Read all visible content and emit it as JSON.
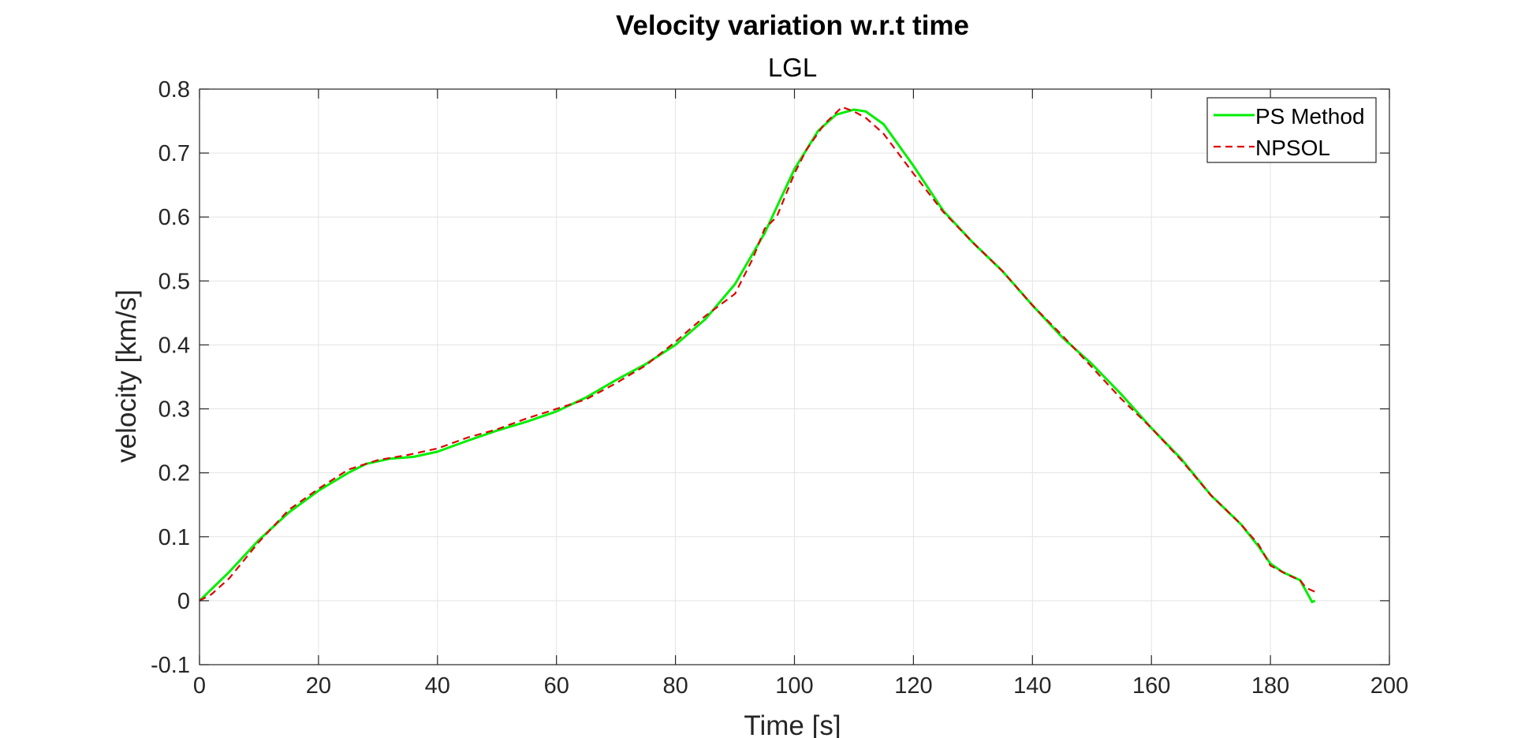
{
  "chart_data": {
    "type": "line",
    "title": "Velocity variation w.r.t time",
    "subtitle": "LGL",
    "xlabel": "Time [s]",
    "ylabel": "velocity [km/s]",
    "xlim": [
      0,
      200
    ],
    "ylim": [
      -0.1,
      0.8
    ],
    "xticks": [
      "0",
      "20",
      "40",
      "60",
      "80",
      "100",
      "120",
      "140",
      "160",
      "180",
      "200"
    ],
    "yticks": [
      "-0.1",
      "0",
      "0.1",
      "0.2",
      "0.3",
      "0.4",
      "0.5",
      "0.6",
      "0.7",
      "0.8"
    ],
    "grid": true,
    "legend_position": "top-right",
    "series": [
      {
        "name": "PS Method",
        "color": "#00ee00",
        "style": "solid",
        "x": [
          0,
          5,
          10,
          15,
          20,
          25,
          28,
          32,
          36,
          40,
          45,
          50,
          55,
          60,
          65,
          70,
          75,
          80,
          85,
          90,
          95,
          100,
          104,
          107,
          110,
          112,
          115,
          120,
          125,
          130,
          135,
          140,
          145,
          150,
          155,
          160,
          165,
          170,
          175,
          178,
          180,
          182,
          185,
          186,
          187,
          187.5
        ],
        "y": [
          0,
          0.045,
          0.095,
          0.138,
          0.172,
          0.2,
          0.214,
          0.222,
          0.225,
          0.233,
          0.25,
          0.266,
          0.28,
          0.296,
          0.318,
          0.345,
          0.37,
          0.4,
          0.44,
          0.495,
          0.575,
          0.675,
          0.735,
          0.76,
          0.768,
          0.765,
          0.745,
          0.68,
          0.61,
          0.56,
          0.515,
          0.462,
          0.412,
          0.37,
          0.322,
          0.27,
          0.222,
          0.165,
          0.12,
          0.085,
          0.058,
          0.045,
          0.032,
          0.015,
          -0.002,
          0.0
        ]
      },
      {
        "name": "NPSOL",
        "color": "#dd0000",
        "style": "dashed",
        "x": [
          0,
          2,
          5,
          10,
          15,
          20,
          25,
          30,
          35,
          40,
          45,
          50,
          55,
          60,
          65,
          70,
          75,
          80,
          85,
          90,
          93,
          95,
          97,
          100,
          102,
          105,
          108,
          110,
          112,
          115,
          120,
          125,
          130,
          135,
          140,
          145,
          150,
          155,
          160,
          165,
          170,
          175,
          178,
          180,
          183,
          185,
          186,
          188
        ],
        "y": [
          0,
          0.01,
          0.035,
          0.092,
          0.142,
          0.175,
          0.205,
          0.22,
          0.228,
          0.238,
          0.255,
          0.268,
          0.285,
          0.3,
          0.315,
          0.34,
          0.368,
          0.405,
          0.445,
          0.48,
          0.535,
          0.582,
          0.6,
          0.668,
          0.705,
          0.745,
          0.772,
          0.765,
          0.755,
          0.73,
          0.668,
          0.608,
          0.56,
          0.515,
          0.462,
          0.415,
          0.365,
          0.315,
          0.27,
          0.22,
          0.165,
          0.12,
          0.088,
          0.055,
          0.04,
          0.032,
          0.02,
          0.012
        ]
      }
    ]
  }
}
